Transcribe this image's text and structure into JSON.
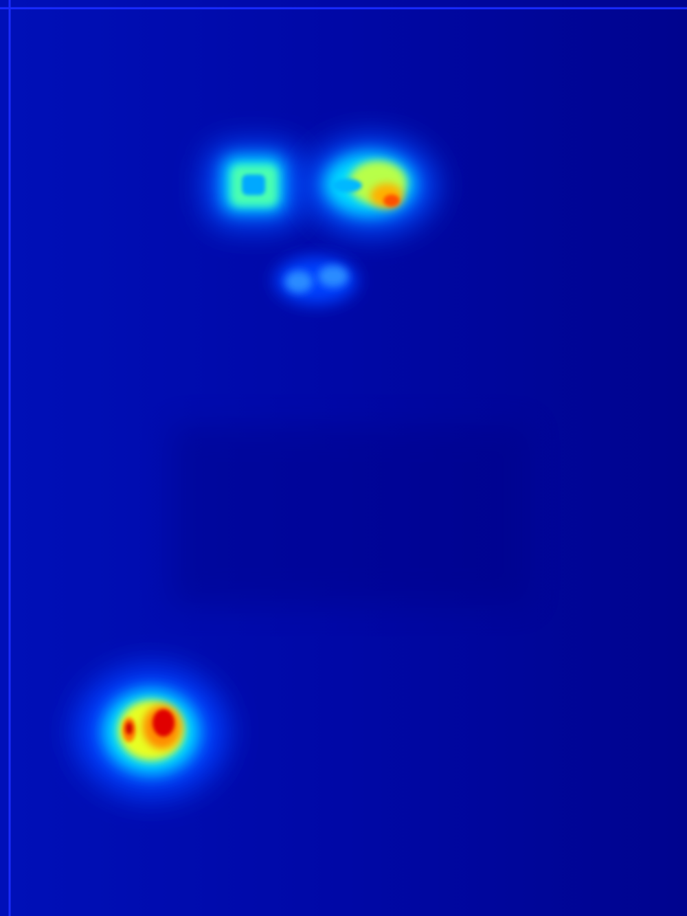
{
  "image": {
    "kind": "heatmap",
    "colormap": "jet",
    "colormap_stops": [
      "#00007f",
      "#0000ff",
      "#00ffff",
      "#ffff00",
      "#ff7f00",
      "#ff0000",
      "#7f0000"
    ],
    "background_color": "#00008a",
    "frame_line_color": "#1a2cff"
  },
  "chart_data": {
    "type": "heatmap",
    "title": "",
    "xlabel": "",
    "ylabel": "",
    "regions": [
      {
        "name": "left-eye-region",
        "peak_intensity": 0.55
      },
      {
        "name": "right-eye-region",
        "peak_intensity": 0.85
      },
      {
        "name": "nose-region",
        "peak_intensity": 0.3
      },
      {
        "name": "lower-left-hotspot",
        "peak_intensity": 1.0
      }
    ]
  }
}
